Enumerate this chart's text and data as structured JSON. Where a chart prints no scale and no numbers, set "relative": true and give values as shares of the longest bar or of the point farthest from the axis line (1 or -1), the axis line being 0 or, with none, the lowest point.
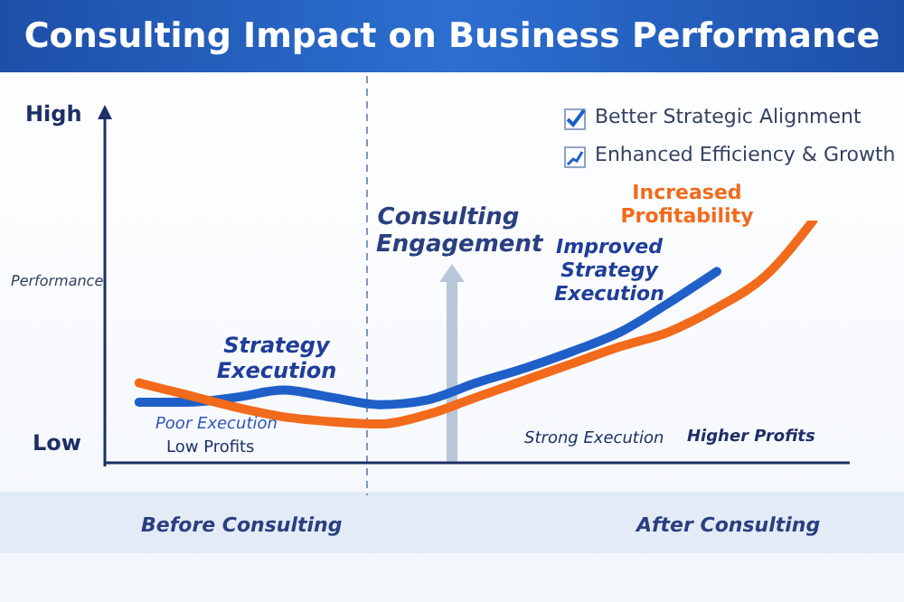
{
  "chart_data": {
    "type": "line",
    "title": "Consulting Impact on Business Performance",
    "ylabel": "Performance",
    "relative": true,
    "categories": [
      null,
      null,
      null,
      null,
      null,
      null,
      null,
      null,
      null,
      null,
      null,
      null,
      null,
      null,
      null
    ],
    "series": [
      {
        "name": "Strategy Execution",
        "color": "#1f5fc8",
        "values": [
          0.25,
          0.25,
          0.27,
          0.3,
          0.27,
          0.24,
          0.26,
          0.33,
          0.39,
          0.46,
          0.54,
          0.66,
          0.79,
          null,
          null
        ]
      },
      {
        "name": "Increased Profitability",
        "color": "#f26a1b",
        "values": [
          0.33,
          0.28,
          0.23,
          0.19,
          0.17,
          0.16,
          0.2,
          0.27,
          0.34,
          0.41,
          0.48,
          0.54,
          0.64,
          0.77,
          1.0
        ]
      }
    ],
    "annotations": [
      "High",
      "Low",
      "Better Strategic Alignment",
      "Enhanced Efficiency & Growth",
      "Consulting Engagement",
      "Improved Strategy Execution",
      "Poor Execution",
      "Low Profits",
      "Strong Execution",
      "Higher Profits",
      "Before Consulting",
      "After Consulting"
    ],
    "marker": "none",
    "line_style": "solid"
  }
}
